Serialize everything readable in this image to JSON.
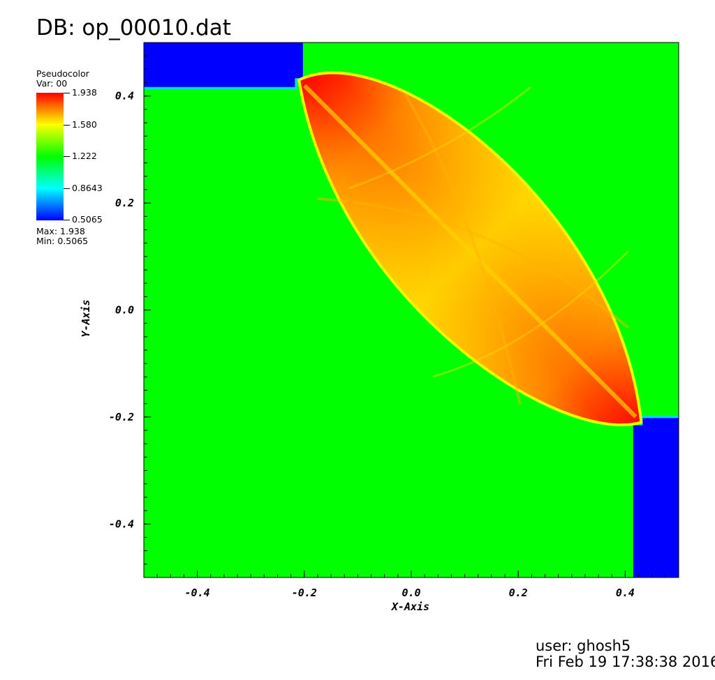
{
  "title": "DB: op_00010.dat",
  "legend": {
    "label": "Pseudocolor",
    "var": "Var: 00",
    "ticks": [
      "1.938",
      "1.580",
      "1.222",
      "0.8643",
      "0.5065"
    ],
    "max_text": "Max:  1.938",
    "min_text": "Min:  0.5065",
    "colormap": [
      "#ff0000",
      "#ffff00",
      "#00ff00",
      "#00ffff",
      "#0000ff"
    ]
  },
  "footer": {
    "user": "user: ghosh5",
    "date": "Fri Feb 19 17:38:38 2016"
  },
  "chart_data": {
    "type": "heatmap",
    "title": "DB: op_00010.dat",
    "xlabel": "X-Axis",
    "ylabel": "Y-Axis",
    "xlim": [
      -0.5,
      0.5
    ],
    "ylim": [
      -0.5,
      0.5
    ],
    "xticks": [
      -0.4,
      -0.2,
      0.0,
      0.2,
      0.4
    ],
    "yticks": [
      -0.4,
      -0.2,
      0.0,
      0.2,
      0.4
    ],
    "xtick_labels": [
      "-0.4",
      "-0.2",
      "0.0",
      "0.2",
      "0.4"
    ],
    "ytick_labels": [
      "-0.4",
      "-0.2",
      "0.0",
      "0.2",
      "0.4"
    ],
    "variable": "Var: 00",
    "value_range": [
      0.5065,
      1.938
    ],
    "colorbar_ticks": [
      1.938,
      1.58,
      1.222,
      0.8643,
      0.5065
    ],
    "background_value": 1.222,
    "blue_corner_value": 0.5065,
    "regions": {
      "top_left_block": {
        "x": [
          -0.5,
          -0.2
        ],
        "y": [
          0.415,
          0.5
        ]
      },
      "bottom_right_block": {
        "x": [
          0.415,
          0.5
        ],
        "y": [
          -0.5,
          -0.2
        ]
      },
      "lens_tips": [
        [
          -0.21,
          0.43
        ],
        [
          0.43,
          -0.21
        ]
      ],
      "lens_hi_value": 1.938,
      "lens_mid_value": 1.6
    }
  }
}
